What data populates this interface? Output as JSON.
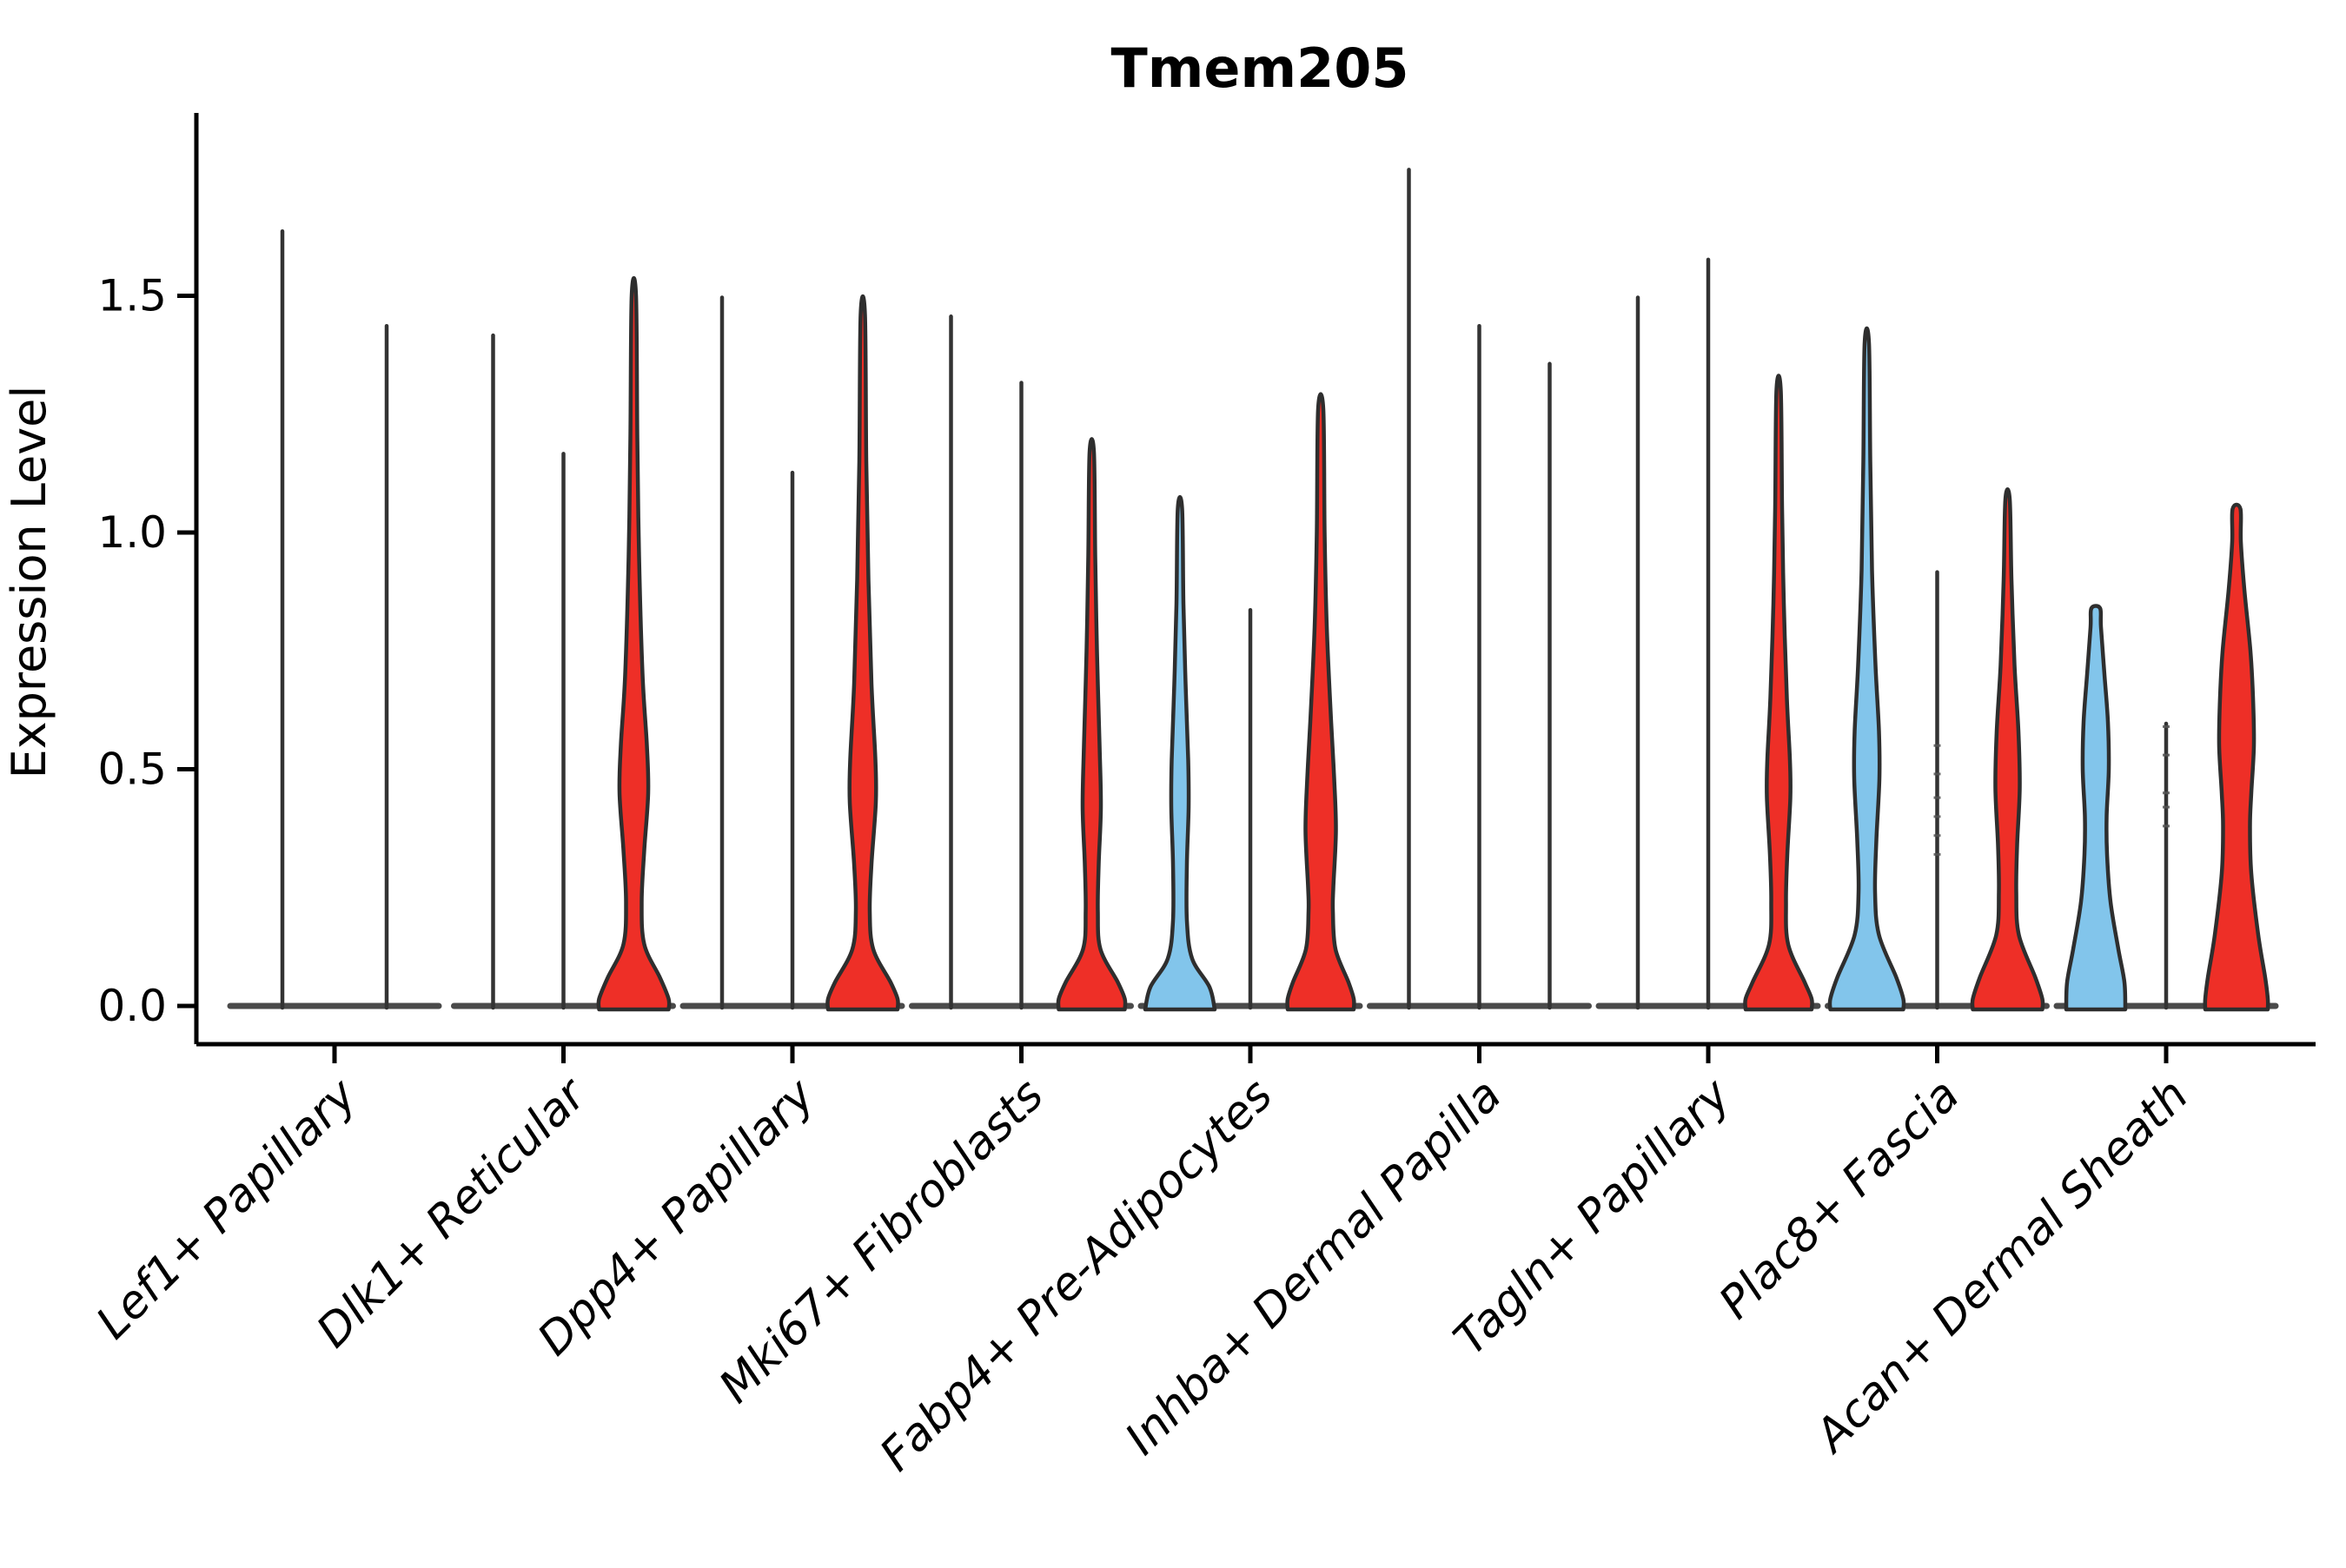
{
  "title": "Tmem205",
  "ylabel": "Expression Level",
  "colors": {
    "red": "#ee2f27",
    "blue": "#82c5eb",
    "outline": "#2e2e2e",
    "line_violin": "#333333",
    "baseline": "#4a4a4a",
    "axis": "#000000",
    "jitter_dot": "#555555"
  },
  "chart_data": {
    "type": "violin",
    "title": "Tmem205",
    "xlabel": "",
    "ylabel": "Expression Level",
    "ylim": [
      -0.09,
      1.9
    ],
    "grid": false,
    "legend": "none",
    "yticks": [
      {
        "value": 0.0,
        "label": "0.0"
      },
      {
        "value": 0.5,
        "label": "0.5"
      },
      {
        "value": 1.0,
        "label": "1.0"
      },
      {
        "value": 1.5,
        "label": "1.5"
      }
    ],
    "categories": [
      "Lef1+ Papillary",
      "Dlk1+ Reticular",
      "Dpp4+ Papillary",
      "Mki67+ Fibroblasts",
      "Fabp4+ Pre-Adipocytes",
      "Inhba+ Dermal Papilla",
      "Tagln+ Papillary",
      "Plac8+ Fascia",
      "Acan+ Dermal Sheath"
    ],
    "groups": [
      {
        "category": "Lef1+ Papillary",
        "violins": [
          {
            "color": "none",
            "max": 1.64
          },
          {
            "color": "none",
            "max": 1.44
          }
        ]
      },
      {
        "category": "Dlk1+ Reticular",
        "violins": [
          {
            "color": "none",
            "max": 1.42
          },
          {
            "color": "none",
            "max": 1.17
          },
          {
            "color": "red",
            "max": 1.5,
            "profile": [
              [
                1.5,
                2.5
              ],
              [
                1.2,
                4
              ],
              [
                0.95,
                6
              ],
              [
                0.7,
                10
              ],
              [
                0.55,
                15
              ],
              [
                0.45,
                16.5
              ],
              [
                0.33,
                12
              ],
              [
                0.22,
                9
              ],
              [
                0.13,
                12
              ],
              [
                0.06,
                30
              ],
              [
                0.015,
                40
              ],
              [
                0,
                40
              ]
            ]
          }
        ]
      },
      {
        "category": "Dpp4+ Papillary",
        "violins": [
          {
            "color": "none",
            "max": 1.5
          },
          {
            "color": "none",
            "max": 1.13
          },
          {
            "color": "red",
            "max": 1.46,
            "profile": [
              [
                1.46,
                2.5
              ],
              [
                1.15,
                4
              ],
              [
                0.9,
                6.5
              ],
              [
                0.68,
                10
              ],
              [
                0.52,
                14.5
              ],
              [
                0.43,
                15
              ],
              [
                0.3,
                10
              ],
              [
                0.2,
                8
              ],
              [
                0.12,
                12
              ],
              [
                0.05,
                32
              ],
              [
                0.015,
                40
              ],
              [
                0,
                40
              ]
            ]
          }
        ]
      },
      {
        "category": "Mki67+ Fibroblasts",
        "violins": [
          {
            "color": "none",
            "max": 1.46
          },
          {
            "color": "none",
            "max": 1.32
          },
          {
            "color": "red",
            "max": 1.17,
            "profile": [
              [
                1.17,
                2.5
              ],
              [
                0.95,
                4
              ],
              [
                0.75,
                6
              ],
              [
                0.55,
                9
              ],
              [
                0.42,
                10.5
              ],
              [
                0.3,
                8
              ],
              [
                0.2,
                7
              ],
              [
                0.12,
                10
              ],
              [
                0.05,
                30
              ],
              [
                0.015,
                38
              ],
              [
                0,
                38
              ]
            ]
          }
        ]
      },
      {
        "category": "Fabp4+ Pre-Adipocytes",
        "violins": [
          {
            "color": "blue",
            "max": 1.05,
            "profile": [
              [
                1.05,
                2.5
              ],
              [
                0.85,
                4
              ],
              [
                0.68,
                6.5
              ],
              [
                0.52,
                9.5
              ],
              [
                0.42,
                10
              ],
              [
                0.3,
                8
              ],
              [
                0.18,
                8
              ],
              [
                0.1,
                14
              ],
              [
                0.04,
                34
              ],
              [
                0,
                40
              ]
            ]
          },
          {
            "color": "none",
            "max": 0.84
          },
          {
            "color": "red",
            "max": 1.26,
            "profile": [
              [
                1.26,
                3
              ],
              [
                1.0,
                4.5
              ],
              [
                0.8,
                7
              ],
              [
                0.6,
                12
              ],
              [
                0.48,
                15.5
              ],
              [
                0.37,
                17.5
              ],
              [
                0.25,
                14.5
              ],
              [
                0.2,
                14
              ],
              [
                0.12,
                17
              ],
              [
                0.05,
                32
              ],
              [
                0.015,
                38
              ],
              [
                0,
                38
              ]
            ]
          }
        ]
      },
      {
        "category": "Inhba+ Dermal Papilla",
        "violins": [
          {
            "color": "none",
            "max": 1.77
          },
          {
            "color": "none",
            "max": 1.44
          },
          {
            "color": "none",
            "max": 1.36
          }
        ]
      },
      {
        "category": "Tagln+ Papillary",
        "violins": [
          {
            "color": "none",
            "max": 1.5
          },
          {
            "color": "none",
            "max": 1.58
          },
          {
            "color": "red",
            "max": 1.3,
            "profile": [
              [
                1.3,
                2.5
              ],
              [
                1.05,
                4
              ],
              [
                0.85,
                6
              ],
              [
                0.65,
                9.5
              ],
              [
                0.52,
                13
              ],
              [
                0.44,
                13.5
              ],
              [
                0.32,
                10
              ],
              [
                0.22,
                8.5
              ],
              [
                0.13,
                11
              ],
              [
                0.05,
                30
              ],
              [
                0.015,
                38
              ],
              [
                0,
                38
              ]
            ]
          }
        ]
      },
      {
        "category": "Plac8+ Fascia",
        "violins": [
          {
            "color": "blue",
            "max": 1.4,
            "profile": [
              [
                1.4,
                2.5
              ],
              [
                1.15,
                4
              ],
              [
                0.92,
                6
              ],
              [
                0.72,
                10
              ],
              [
                0.58,
                14
              ],
              [
                0.48,
                14.5
              ],
              [
                0.35,
                11
              ],
              [
                0.24,
                9.5
              ],
              [
                0.15,
                14
              ],
              [
                0.06,
                34
              ],
              [
                0.015,
                42
              ],
              [
                0,
                42
              ]
            ]
          },
          {
            "color": "none",
            "max": 0.92,
            "points": [
              0.32,
              0.36,
              0.4,
              0.44,
              0.49,
              0.55
            ]
          },
          {
            "color": "red",
            "max": 1.07,
            "profile": [
              [
                1.07,
                2.5
              ],
              [
                0.9,
                4.5
              ],
              [
                0.72,
                8
              ],
              [
                0.58,
                12.5
              ],
              [
                0.46,
                14
              ],
              [
                0.34,
                11
              ],
              [
                0.24,
                10
              ],
              [
                0.15,
                13
              ],
              [
                0.06,
                32
              ],
              [
                0.015,
                40
              ],
              [
                0,
                40
              ]
            ]
          }
        ]
      },
      {
        "category": "Acan+ Dermal Sheath",
        "violins": [
          {
            "color": "blue",
            "max": 0.84,
            "profile": [
              [
                0.84,
                5
              ],
              [
                0.8,
                6
              ],
              [
                0.7,
                10
              ],
              [
                0.6,
                14
              ],
              [
                0.5,
                15
              ],
              [
                0.4,
                12.5
              ],
              [
                0.32,
                13
              ],
              [
                0.22,
                17
              ],
              [
                0.12,
                26
              ],
              [
                0.05,
                33
              ],
              [
                0,
                34
              ]
            ]
          },
          {
            "color": "none",
            "max": 0.6,
            "points": [
              0.38,
              0.42,
              0.45,
              0.53,
              0.59
            ]
          },
          {
            "color": "red",
            "max": 1.05,
            "profile": [
              [
                1.05,
                4.5
              ],
              [
                0.98,
                5
              ],
              [
                0.88,
                9
              ],
              [
                0.75,
                16
              ],
              [
                0.65,
                19
              ],
              [
                0.55,
                20
              ],
              [
                0.45,
                17
              ],
              [
                0.38,
                15.5
              ],
              [
                0.28,
                17
              ],
              [
                0.15,
                25
              ],
              [
                0.06,
                33
              ],
              [
                0.015,
                36
              ],
              [
                0,
                36
              ]
            ]
          }
        ]
      }
    ]
  }
}
